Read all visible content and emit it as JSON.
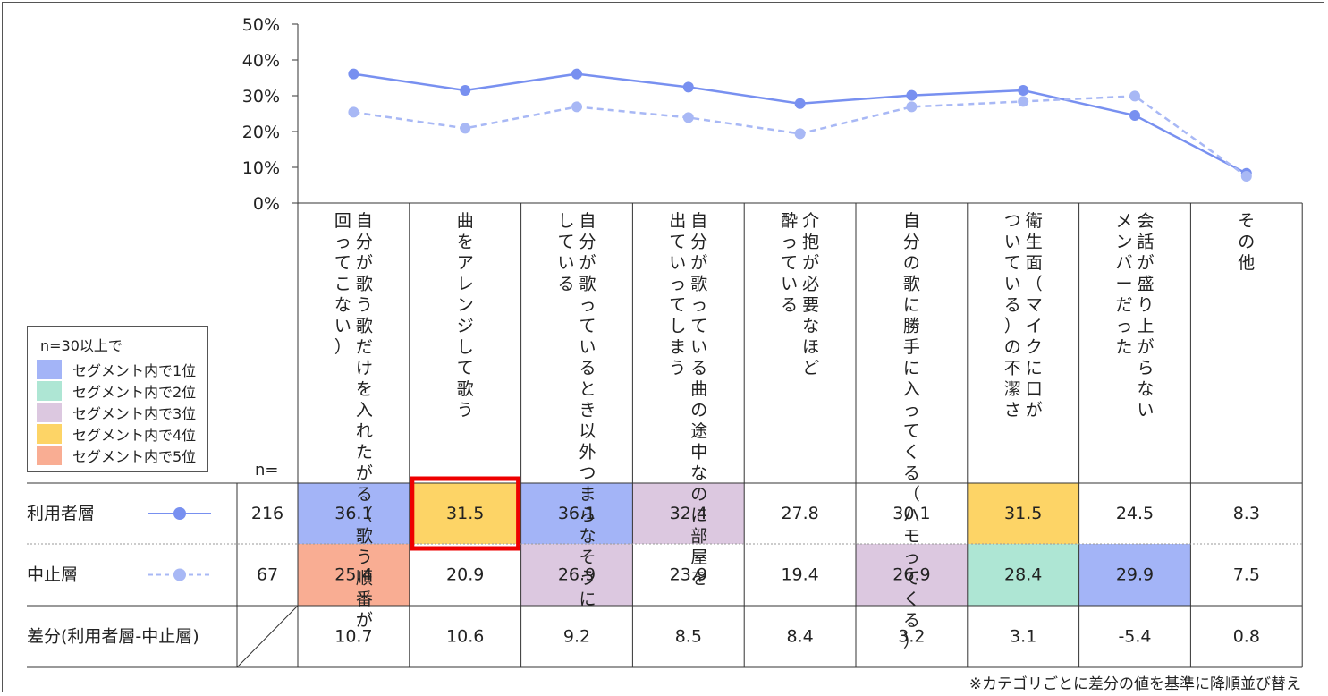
{
  "chart_data": {
    "type": "line",
    "yticks": [
      "50%",
      "40%",
      "30%",
      "20%",
      "10%",
      "0%"
    ],
    "ylim": [
      0,
      50
    ],
    "categories": [
      [
        "自分が歌う歌だけを入れたがる（歌う順番が",
        "回ってこない）"
      ],
      [
        "曲をアレンジして歌う"
      ],
      [
        "自分が歌っているとき以外つまらなそうに",
        "している"
      ],
      [
        "自分が歌っている曲の途中なのに部屋を",
        "出ていってしまう"
      ],
      [
        "介抱が必要なほど",
        "酔っている"
      ],
      [
        "自分の歌に勝手に入ってくる（ハモってくる）"
      ],
      [
        "衛生面（マイクに口が",
        "ついている）の不潔さ"
      ],
      [
        "会話が盛り上がらない",
        "メンバーだった"
      ],
      [
        "その他"
      ]
    ],
    "series": [
      {
        "name": "利用者層",
        "n": "216",
        "values": [
          36.1,
          31.5,
          36.1,
          32.4,
          27.8,
          30.1,
          31.5,
          24.5,
          8.3
        ],
        "labels": [
          "36.1",
          "31.5",
          "36.1",
          "32.4",
          "27.8",
          "30.1",
          "31.5",
          "24.5",
          "8.3"
        ],
        "color": "#7890f0",
        "style": "solid",
        "ranks": [
          1,
          4,
          1,
          3,
          0,
          0,
          4,
          0,
          0
        ]
      },
      {
        "name": "中止層",
        "n": "67",
        "values": [
          25.4,
          20.9,
          26.9,
          23.9,
          19.4,
          26.9,
          28.4,
          29.9,
          7.5
        ],
        "labels": [
          "25.4",
          "20.9",
          "26.9",
          "23.9",
          "19.4",
          "26.9",
          "28.4",
          "29.9",
          "7.5"
        ],
        "color": "#a8b8f5",
        "style": "dashed",
        "ranks": [
          5,
          0,
          3,
          0,
          0,
          3,
          2,
          1,
          0
        ]
      }
    ],
    "diff": {
      "name": "差分(利用者層-中止層)",
      "labels": [
        "10.7",
        "10.6",
        "9.2",
        "8.5",
        "8.4",
        "3.2",
        "3.1",
        "-5.4",
        "0.8"
      ]
    },
    "n_header": "n=",
    "highlight": {
      "row": 0,
      "col": 1,
      "color": "#ee0000"
    }
  },
  "legend": {
    "title": "n=30以上で",
    "items": [
      {
        "label": "セグメント内で1位",
        "color": "#a3b4f7"
      },
      {
        "label": "セグメント内で2位",
        "color": "#aee6d4"
      },
      {
        "label": "セグメント内で3位",
        "color": "#dcc8e0"
      },
      {
        "label": "セグメント内で4位",
        "color": "#fdd466"
      },
      {
        "label": "セグメント内で5位",
        "color": "#f9ad93"
      }
    ]
  },
  "footnote": "※カテゴリごとに差分の値を基準に降順並び替え"
}
